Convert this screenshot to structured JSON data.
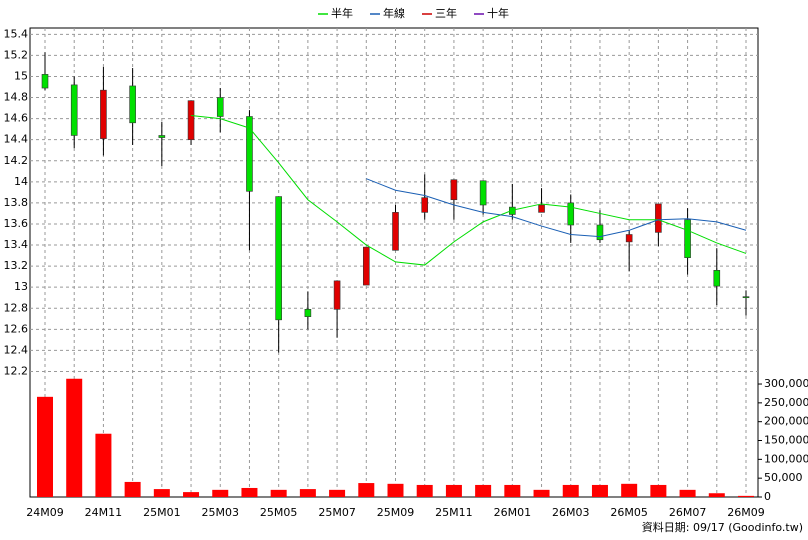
{
  "chart_data": {
    "type": "candlestick",
    "categories": [
      "24M09",
      null,
      "24M11",
      null,
      "25M01",
      null,
      "25M03",
      null,
      "25M05",
      null,
      "25M07",
      null,
      "25M09",
      null,
      "25M11",
      null,
      "26M01",
      null,
      "26M03",
      null,
      "26M05",
      null,
      "26M07",
      null,
      "26M09"
    ],
    "open": [
      15.02,
      14.92,
      14.41,
      14.91,
      14.44,
      14.4,
      14.8,
      14.62,
      13.86,
      12.79,
      12.79,
      13.02,
      13.35,
      13.71,
      13.83,
      14.01,
      13.76,
      13.71,
      13.8,
      13.59,
      13.43,
      13.52,
      13.64,
      13.16,
      12.91
    ],
    "high": [
      15.23,
      15.0,
      15.09,
      15.08,
      14.57,
      14.77,
      14.89,
      14.68,
      13.86,
      12.96,
      13.06,
      13.38,
      13.78,
      14.07,
      14.02,
      14.01,
      13.98,
      13.94,
      13.88,
      13.73,
      13.54,
      13.79,
      13.75,
      13.37,
      12.97
    ],
    "low": [
      14.87,
      14.32,
      14.25,
      14.35,
      14.15,
      14.35,
      14.47,
      13.35,
      12.38,
      12.6,
      12.52,
      13.02,
      13.35,
      13.64,
      13.64,
      13.69,
      13.64,
      13.71,
      13.42,
      13.42,
      13.15,
      13.39,
      13.12,
      12.83,
      12.73
    ],
    "close": [
      14.89,
      14.44,
      14.87,
      14.56,
      14.42,
      14.77,
      14.62,
      13.91,
      12.69,
      12.72,
      13.06,
      13.38,
      13.71,
      13.85,
      14.02,
      13.78,
      13.69,
      13.78,
      13.59,
      13.45,
      13.5,
      13.79,
      13.28,
      13.01,
      12.9
    ],
    "up_color": "#e00000",
    "down_color": "#00e000",
    "series": [
      {
        "name": "半年",
        "color": "#00dd00",
        "values": [
          null,
          null,
          null,
          null,
          null,
          14.63,
          14.6,
          14.51,
          14.18,
          13.83,
          13.62,
          13.4,
          13.24,
          13.21,
          13.43,
          13.62,
          13.73,
          13.79,
          13.76,
          13.7,
          13.64,
          13.64,
          13.54,
          13.42,
          13.32
        ]
      },
      {
        "name": "年線",
        "color": "#1a5fb4",
        "values": [
          null,
          null,
          null,
          null,
          null,
          null,
          null,
          null,
          null,
          null,
          null,
          14.03,
          13.92,
          13.87,
          13.78,
          13.71,
          13.67,
          13.58,
          13.5,
          13.48,
          13.54,
          13.64,
          13.65,
          13.62,
          13.54
        ]
      },
      {
        "name": "三年",
        "color": "#cc0000",
        "values": [
          null,
          null,
          null,
          null,
          null,
          null,
          null,
          null,
          null,
          null,
          null,
          null,
          null,
          null,
          null,
          null,
          null,
          null,
          null,
          null,
          null,
          null,
          null,
          null,
          null
        ]
      },
      {
        "name": "十年",
        "color": "#6a0dad",
        "values": [
          null,
          null,
          null,
          null,
          null,
          null,
          null,
          null,
          null,
          null,
          null,
          null,
          null,
          null,
          null,
          null,
          null,
          null,
          null,
          null,
          null,
          null,
          null,
          null,
          null
        ]
      }
    ],
    "volume": {
      "color": "#ff0000",
      "values": [
        266000,
        314000,
        168000,
        40000,
        21000,
        13000,
        19000,
        24000,
        19000,
        21000,
        19000,
        37000,
        35000,
        32000,
        32000,
        32000,
        32000,
        19000,
        32000,
        32000,
        35000,
        32000,
        19000,
        10000,
        3000
      ]
    },
    "ylim": [
      12.1,
      15.46
    ],
    "yticks": [
      12.2,
      12.4,
      12.6,
      12.8,
      13,
      13.2,
      13.4,
      13.6,
      13.8,
      14,
      14.2,
      14.4,
      14.6,
      14.8,
      15,
      15.2,
      15.4
    ],
    "y2lim": [
      0,
      316000
    ],
    "y2ticks": [
      0,
      {
        "value": 50000,
        "label": "50,000"
      },
      {
        "value": 100000,
        "label": "100,000"
      },
      {
        "value": 150000,
        "label": "150,000"
      },
      {
        "value": 200000,
        "label": "200,000"
      },
      {
        "value": 250000,
        "label": "250,000"
      },
      {
        "value": 300000,
        "label": "300,000"
      }
    ],
    "grid": true,
    "footer": "資料日期: 09/17 (Goodinfo.tw)"
  }
}
